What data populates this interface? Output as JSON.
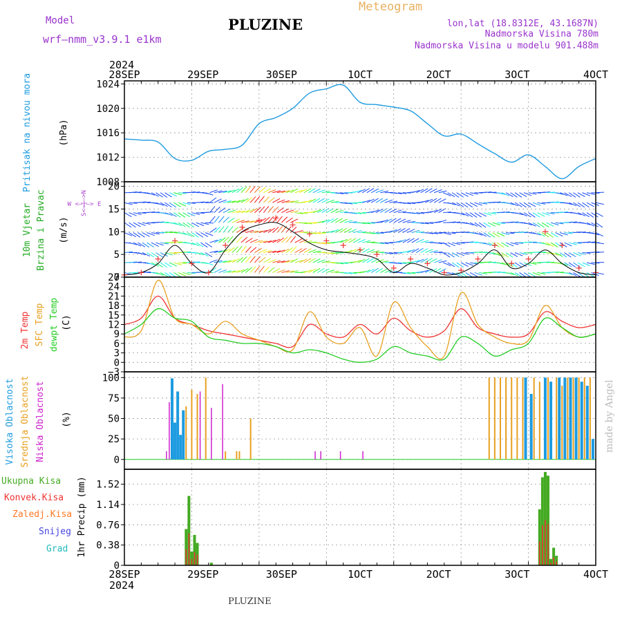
{
  "header": {
    "model_label": "Model",
    "model_name": "wrf–nmm_v3.9.1  e1km",
    "location": "PLUZINE",
    "product": "Meteogram",
    "lonlat": "lon,lat (18.8312E, 43.1687N)",
    "elevation": "Nadmorska Visina 780m",
    "model_elevation": "Nadmorska Visina u modelu 901.488m",
    "year": "2024",
    "footer": "PLUZINE",
    "credit": "made by Angel"
  },
  "colors": {
    "pressure": "#1e9be0",
    "temp2m": "#ee3333",
    "sfc": "#e8a020",
    "dewpt": "#22cc22",
    "high_cloud": "#1e9be0",
    "mid_cloud": "#e8a020",
    "low_cloud": "#cc22cc",
    "total_rain": "#44aa22",
    "conv_rain": "#ee3333",
    "frz_rain": "#ff7722",
    "snow": "#4444dd",
    "grad": "#22bbbb",
    "wind_label": "#22aa22",
    "dir_label": "#aa44cc"
  },
  "time_axis": {
    "top_labels": [
      "28SEP",
      "29SEP",
      "30SEP",
      "1OCT",
      "2OCT",
      "3OCT",
      "4OCT"
    ],
    "bottom_labels": [
      "28SEP",
      "29SEP",
      "30SEP",
      "1OCT",
      "2OCT",
      "3OCT",
      "4OCT"
    ],
    "year_label_top": "2024",
    "year_label_bottom": "2024"
  },
  "panels": {
    "pressure": {
      "ylabel_name": "Pritisak na nivou mora",
      "ylabel_unit": "(hPa)",
      "ticks": [
        "1008",
        "1012",
        "1016",
        "1020",
        "1024"
      ]
    },
    "wind": {
      "ylabel_line1": "10m Vjetar",
      "ylabel_line2": "Brzina i Pravac",
      "ylabel_unit": "(m/s)",
      "compass": "W  <–|–>  E",
      "compass_ns": "S<–|–>N",
      "ticks": [
        "0",
        "5",
        "10",
        "15",
        "20"
      ]
    },
    "temperature": {
      "ylabel_a": "2m Temp",
      "ylabel_b": "SFC Temp",
      "ylabel_c": "dewpt Temp",
      "ylabel_unit": "(C)",
      "ticks": [
        "−3",
        "0",
        "3",
        "6",
        "9",
        "12",
        "15",
        "18",
        "21",
        "24",
        "27"
      ]
    },
    "cloud": {
      "ylabel_a": "Visoka Oblacnost",
      "ylabel_b": "Srednja Oblacnost",
      "ylabel_c": "Niska  Oblacnost",
      "ylabel_unit": "(%)",
      "ticks": [
        "0",
        "25",
        "50",
        "75",
        "100"
      ]
    },
    "precip": {
      "ylabel_unit": "1hr Precip (mm)",
      "ticks": [
        "0",
        "0.38",
        "0.76",
        "1.14",
        "1.52"
      ],
      "legend": [
        "Ukupna  Kisa",
        "Konvek.Kisa",
        "Zaledj.Kisa",
        "Snijeg",
        "Grad"
      ]
    }
  },
  "chart_data": [
    {
      "type": "line",
      "title": "",
      "xlabel": "",
      "ylabel": "Pritisak na nivou mora (hPa)",
      "x_hours": [
        0,
        6,
        12,
        18,
        24,
        30,
        36,
        42,
        48,
        54,
        60,
        66,
        72,
        78,
        84,
        90,
        96,
        102,
        108,
        114,
        120,
        126,
        132,
        138,
        144,
        150,
        156,
        162,
        168
      ],
      "ylim": [
        1008,
        1024.5
      ],
      "series": [
        {
          "values": [
            1015.0,
            1014.8,
            1014.5,
            1011.8,
            1011.5,
            1013.0,
            1013.3,
            1014.0,
            1017.5,
            1018.5,
            1020.0,
            1022.5,
            1023.2,
            1023.8,
            1021.0,
            1020.6,
            1020.2,
            1019.6,
            1017.5,
            1015.5,
            1015.8,
            1014.2,
            1012.6,
            1011.2,
            1012.4,
            1010.5,
            1008.5,
            1010.5,
            1011.8
          ]
        }
      ]
    },
    {
      "type": "line",
      "title": "",
      "xlabel": "",
      "ylabel": "10m Vjetar Brzina i Pravac (m/s)",
      "x_hours": [
        0,
        6,
        12,
        18,
        24,
        30,
        36,
        42,
        48,
        54,
        60,
        66,
        72,
        78,
        84,
        90,
        96,
        102,
        108,
        114,
        120,
        126,
        132,
        138,
        144,
        150,
        156,
        162,
        168
      ],
      "ylim": [
        0,
        21
      ],
      "series": [
        {
          "name": "Brzina",
          "values": [
            0.5,
            1,
            3,
            7,
            3,
            1,
            6,
            10,
            11.5,
            12,
            10,
            7.5,
            6,
            5.5,
            5,
            4,
            1,
            3,
            2,
            0.5,
            1,
            3,
            6,
            2,
            3,
            6,
            3,
            1,
            0.5
          ]
        },
        {
          "name": "Udar",
          "values": [
            0.5,
            1,
            4,
            8,
            3,
            1,
            7,
            11,
            12.5,
            13,
            11.5,
            9.5,
            8,
            7,
            6,
            5,
            2,
            4,
            3,
            1,
            1.5,
            4,
            7,
            3,
            4,
            10,
            7,
            2,
            1
          ]
        }
      ]
    },
    {
      "type": "line",
      "title": "",
      "xlabel": "",
      "ylabel": "Temp (C)",
      "x_hours": [
        0,
        6,
        12,
        18,
        24,
        30,
        36,
        42,
        48,
        54,
        60,
        66,
        72,
        78,
        84,
        90,
        96,
        102,
        108,
        114,
        120,
        126,
        132,
        138,
        144,
        150,
        156,
        162,
        168
      ],
      "ylim": [
        -3,
        27
      ],
      "series": [
        {
          "name": "2m Temp",
          "values": [
            12,
            14,
            21,
            14,
            12,
            10,
            9,
            8,
            7,
            6,
            5,
            12,
            9,
            8,
            12,
            9,
            14,
            10,
            8,
            10,
            17,
            11,
            9,
            8,
            9,
            16,
            13,
            11,
            12
          ]
        },
        {
          "name": "SFC Temp",
          "values": [
            8,
            10,
            26,
            14,
            12,
            9,
            13,
            9,
            7,
            5,
            4,
            16,
            8,
            6,
            11,
            2,
            19,
            11,
            5,
            2,
            22,
            12,
            8,
            6,
            7,
            18,
            11,
            8,
            9
          ]
        },
        {
          "name": "dewpt Temp",
          "values": [
            9,
            12,
            17,
            14,
            13,
            8,
            7,
            6,
            6,
            5,
            3,
            4,
            3,
            1,
            0,
            1,
            5,
            3,
            2,
            1,
            8,
            6,
            2,
            4,
            6,
            14,
            11,
            8,
            9
          ]
        }
      ]
    },
    {
      "type": "bar",
      "title": "",
      "xlabel": "",
      "ylabel": "Oblacnost (%)",
      "ylim": [
        0,
        100
      ],
      "series": [
        {
          "name": "Visoka Oblacnost",
          "x_hours": [
            17,
            18,
            19,
            20,
            21,
            143,
            145,
            150,
            152,
            155,
            157,
            159,
            161,
            163,
            165,
            167
          ],
          "values": [
            99,
            45,
            83,
            30,
            60,
            100,
            80,
            100,
            95,
            100,
            100,
            100,
            100,
            95,
            90,
            25
          ]
        },
        {
          "name": "Srednja Oblacnost",
          "x_hours": [
            22,
            24,
            26,
            29,
            36,
            40,
            41,
            45,
            130,
            132,
            134,
            136,
            138,
            140,
            142,
            146,
            148,
            151,
            154,
            156,
            158,
            160,
            162,
            164,
            166
          ],
          "values": [
            65,
            85,
            80,
            100,
            10,
            10,
            10,
            50,
            100,
            100,
            100,
            100,
            100,
            100,
            100,
            100,
            95,
            100,
            100,
            90,
            100,
            100,
            100,
            100,
            100
          ]
        },
        {
          "name": "Niska Oblacnost",
          "x_hours": [
            15,
            16,
            27,
            31,
            35,
            68,
            70,
            77,
            85
          ],
          "values": [
            10,
            70,
            83,
            63,
            92,
            10,
            10,
            10,
            10
          ]
        }
      ]
    },
    {
      "type": "bar",
      "title": "",
      "xlabel": "",
      "ylabel": "1hr Precip (mm)",
      "ylim": [
        0,
        1.8
      ],
      "series": [
        {
          "name": "Ukupna Kisa",
          "x_hours": [
            22,
            23,
            24,
            25,
            26,
            27,
            31,
            148,
            149,
            150,
            151,
            152,
            153,
            154,
            155
          ],
          "values": [
            0.68,
            1.3,
            0.26,
            0.57,
            0.42,
            0.0,
            0.05,
            1.05,
            1.65,
            1.75,
            1.68,
            0.12,
            0.33,
            0.18,
            0.0
          ]
        },
        {
          "name": "Konvek.Kisa",
          "x_hours": [
            22,
            23,
            24,
            25,
            26,
            148,
            149,
            150,
            151,
            152,
            153,
            154
          ],
          "values": [
            0.3,
            0.6,
            0.12,
            0.25,
            0.2,
            0.45,
            0.75,
            0.85,
            0.78,
            0.05,
            0.15,
            0.08
          ]
        }
      ]
    }
  ]
}
